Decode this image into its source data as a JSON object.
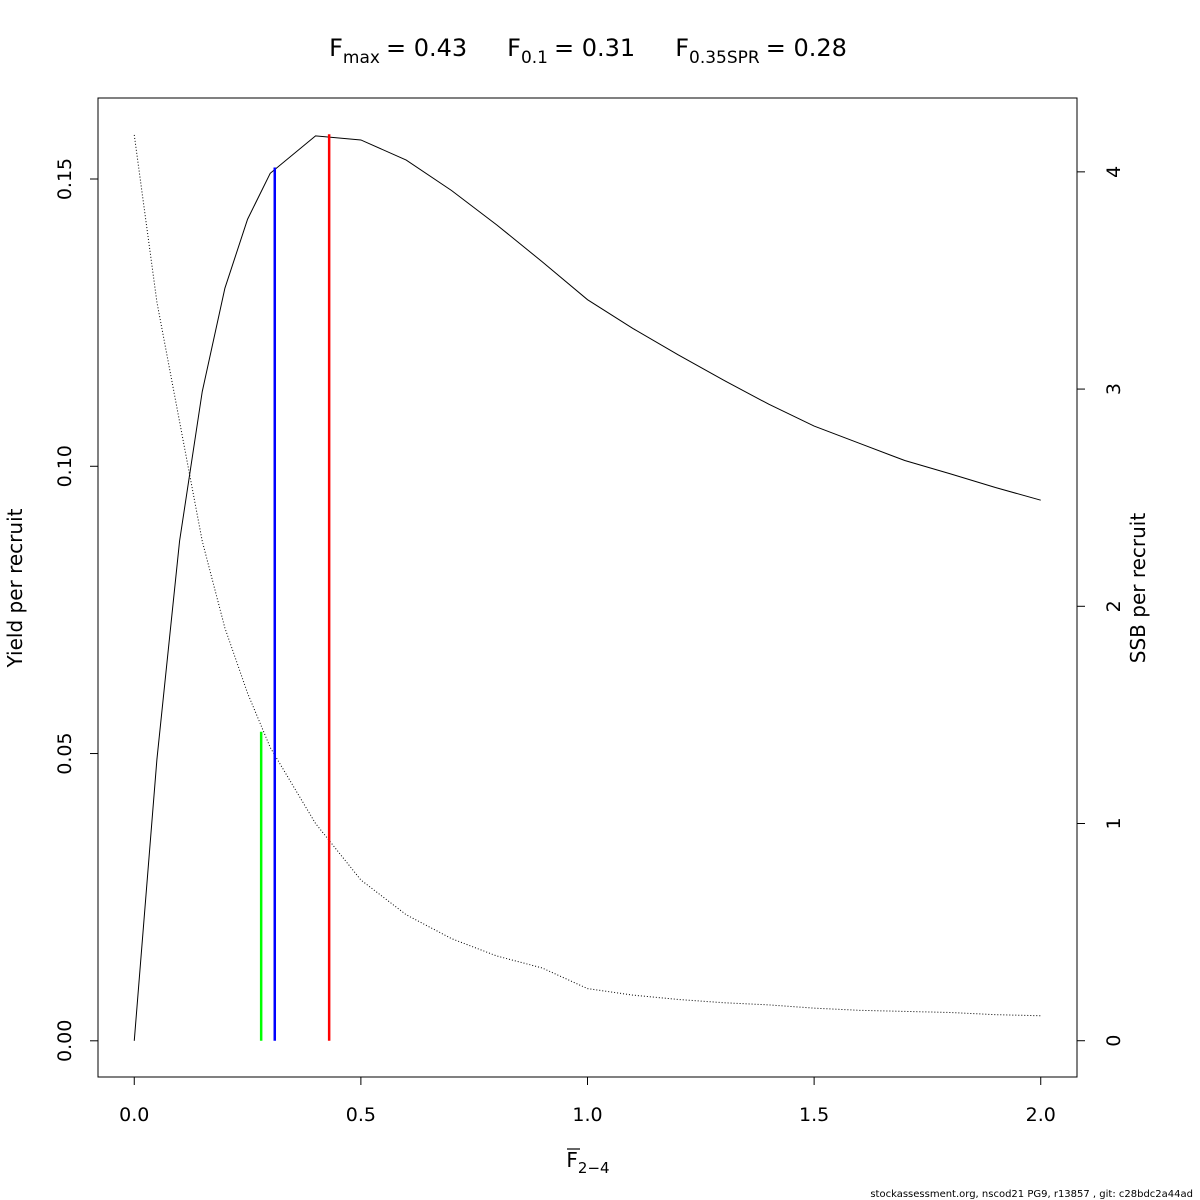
{
  "chart_data": {
    "type": "line",
    "title": [
      {
        "symbol": "F",
        "subscript": "max",
        "label": "= 0.43"
      },
      {
        "symbol": "F",
        "subscript": "0.1",
        "label": "= 0.31"
      },
      {
        "symbol": "F",
        "subscript": "0.35SPR",
        "label": "= 0.28"
      }
    ],
    "xlabel": {
      "symbol": "F",
      "subscript": "2−4"
    },
    "ylabel": "Yield per recruit",
    "y2label": "SSB per recruit",
    "footer": "stockassessment.org, nscod21 PG9, r13857 , git: c28bdc2a44ad",
    "x": [
      0,
      0.05,
      0.1,
      0.15,
      0.2,
      0.25,
      0.3,
      0.4,
      0.5,
      0.6,
      0.7,
      0.8,
      0.9,
      1.0,
      1.1,
      1.2,
      1.3,
      1.4,
      1.5,
      1.6,
      1.7,
      1.8,
      1.9,
      2.0
    ],
    "series": [
      {
        "color": "#000000",
        "style": "solid",
        "values": [
          0,
          0.049,
          0.087,
          0.113,
          0.131,
          0.143,
          0.151,
          0.1575,
          0.1568,
          0.1533,
          0.148,
          0.142,
          0.1356,
          0.129,
          0.124,
          0.1194,
          0.115,
          0.1108,
          0.107,
          0.104,
          0.101,
          0.0987,
          0.0963,
          0.0941
        ]
      },
      {
        "color": "#000000",
        "style": "dotted",
        "axis": "y2",
        "values": [
          4.17,
          3.4,
          2.85,
          2.3,
          1.9,
          1.6,
          1.35,
          1.0,
          0.74,
          0.58,
          0.47,
          0.39,
          0.335,
          0.24,
          0.21,
          0.19,
          0.175,
          0.165,
          0.15,
          0.14,
          0.135,
          0.13,
          0.12,
          0.115
        ]
      }
    ],
    "reference_lines": [
      {
        "x": 0.43,
        "y": 0.1578,
        "color": "#ff0000"
      },
      {
        "x": 0.31,
        "y": 0.152,
        "color": "#0000ff"
      },
      {
        "x": 0.28,
        "y": 0.0538,
        "color": "#00ff00"
      }
    ],
    "xlim": [
      -0.08,
      2.08
    ],
    "xticks": [
      {
        "value": 0,
        "label": "0.0"
      },
      {
        "value": 0.5,
        "label": "0.5"
      },
      {
        "value": 1,
        "label": "1.0"
      },
      {
        "value": 1.5,
        "label": "1.5"
      },
      {
        "value": 2,
        "label": "2.0"
      }
    ],
    "ylim": [
      -0.0063,
      0.1641
    ],
    "yticks": [
      {
        "value": 0,
        "label": "0.00"
      },
      {
        "value": 0.05,
        "label": "0.05"
      },
      {
        "value": 0.1,
        "label": "0.10"
      },
      {
        "value": 0.15,
        "label": "0.15"
      }
    ],
    "y2lim": [
      -0.167,
      4.34
    ],
    "y2ticks": [
      0,
      1,
      2,
      3,
      4
    ]
  }
}
